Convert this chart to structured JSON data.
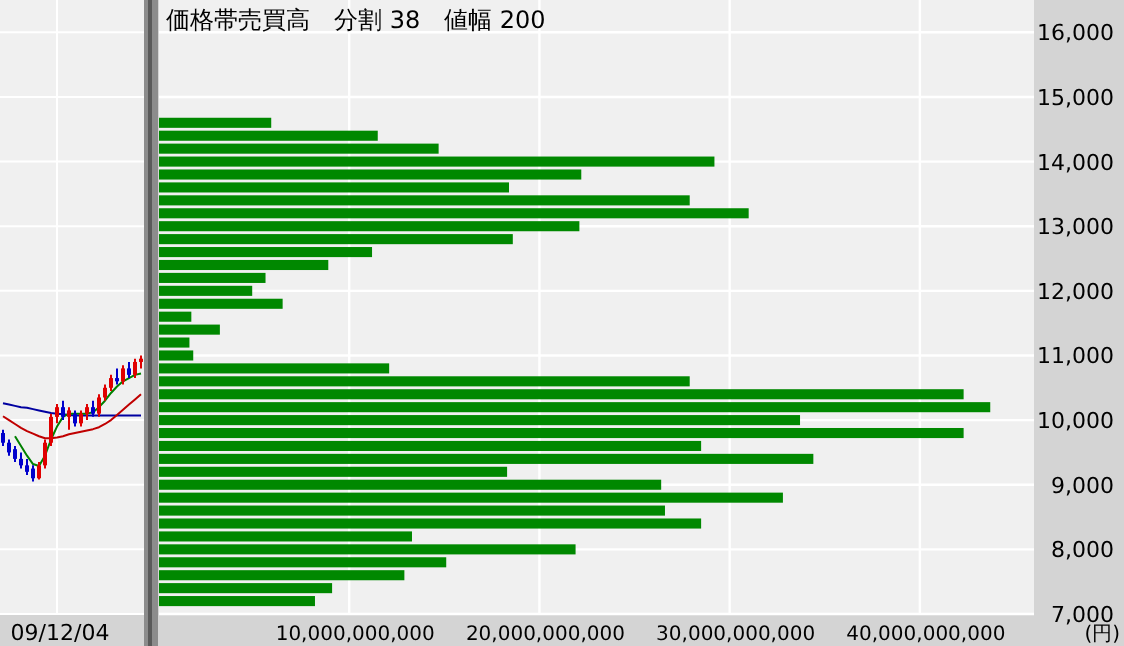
{
  "chart_data": [
    {
      "type": "candlestick",
      "categories": [
        null,
        null,
        null,
        null,
        null,
        null,
        null,
        null,
        null,
        "09/12/04",
        null,
        null,
        null,
        null,
        null,
        null,
        null,
        null,
        null,
        null,
        null,
        null,
        null,
        null
      ],
      "ohlc": [
        [
          9800,
          9850,
          9600,
          9650
        ],
        [
          9650,
          9700,
          9450,
          9500
        ],
        [
          9550,
          9600,
          9350,
          9400
        ],
        [
          9400,
          9500,
          9250,
          9300
        ],
        [
          9300,
          9400,
          9150,
          9200
        ],
        [
          9250,
          9300,
          9050,
          9100
        ],
        [
          9100,
          9350,
          9080,
          9300
        ],
        [
          9300,
          9700,
          9250,
          9650
        ],
        [
          9650,
          10100,
          9600,
          10050
        ],
        [
          10050,
          10250,
          9950,
          10200
        ],
        [
          10200,
          10300,
          10000,
          10050
        ],
        [
          10050,
          10200,
          9850,
          10150
        ],
        [
          10100,
          10150,
          9900,
          9950
        ],
        [
          9950,
          10150,
          9900,
          10100
        ],
        [
          10100,
          10250,
          10000,
          10200
        ],
        [
          10200,
          10300,
          10050,
          10100
        ],
        [
          10100,
          10400,
          10050,
          10350
        ],
        [
          10350,
          10550,
          10300,
          10500
        ],
        [
          10500,
          10700,
          10450,
          10650
        ],
        [
          10650,
          10800,
          10550,
          10600
        ],
        [
          10600,
          10850,
          10550,
          10800
        ],
        [
          10800,
          10900,
          10650,
          10700
        ],
        [
          10700,
          10950,
          10650,
          10900
        ],
        [
          10900,
          11000,
          10800,
          10950
        ]
      ],
      "colors": [
        "#0000cc",
        "#0000cc",
        "#0000cc",
        "#0000cc",
        "#0000cc",
        "#0000cc",
        "#e00000",
        "#e00000",
        "#e00000",
        "#e00000",
        "#0000cc",
        "#e00000",
        "#0000cc",
        "#e00000",
        "#e00000",
        "#0000cc",
        "#e00000",
        "#e00000",
        "#e00000",
        "#0000cc",
        "#e00000",
        "#0000cc",
        "#e00000",
        "#e00000"
      ],
      "series": [
        {
          "type": "line",
          "color": "#0000a0",
          "values": [
            10260,
            10240,
            10220,
            10200,
            10190,
            10170,
            10150,
            10130,
            10110,
            10100,
            10090,
            10080,
            10070,
            10070,
            10070,
            10070,
            10070,
            10070,
            10070,
            10070,
            10070,
            10070,
            10070,
            10070
          ]
        },
        {
          "type": "line",
          "color": "#c00000",
          "values": [
            10060,
            10000,
            9940,
            9880,
            9830,
            9790,
            9750,
            9720,
            9720,
            9730,
            9750,
            9780,
            9800,
            9820,
            9840,
            9860,
            9890,
            9940,
            10000,
            10080,
            10160,
            10240,
            10320,
            10400
          ]
        },
        {
          "type": "line",
          "color": "#008000",
          "values": [
            null,
            null,
            9750,
            9600,
            9450,
            9320,
            9290,
            9450,
            9700,
            9900,
            10050,
            10100,
            10100,
            10100,
            10100,
            10120,
            10200,
            10300,
            10420,
            10520,
            10600,
            10650,
            10700,
            10720
          ]
        }
      ],
      "ylim": [
        7000,
        16500
      ],
      "yticks": [
        {
          "value": 7000,
          "label": null
        },
        {
          "value": 8000,
          "label": null
        },
        {
          "value": 9000,
          "label": null
        },
        {
          "value": 10000,
          "label": null
        },
        {
          "value": 11000,
          "label": null
        },
        {
          "value": 12000,
          "label": null
        },
        {
          "value": 13000,
          "label": null
        },
        {
          "value": 14000,
          "label": null
        },
        {
          "value": 15000,
          "label": null
        },
        {
          "value": 16000,
          "label": null
        }
      ],
      "tick_labels": "x",
      "grid": true
    },
    {
      "type": "bar",
      "orientation": "horizontal",
      "title": "価格帯売買高　分割 38　値幅 200",
      "xlabel": "(円)",
      "x": [
        7200,
        7400,
        7600,
        7800,
        8000,
        8200,
        8400,
        8600,
        8800,
        9000,
        9200,
        9400,
        9600,
        9800,
        10000,
        10200,
        10400,
        10600,
        10800,
        11000,
        11200,
        11400,
        11600,
        11800,
        12000,
        12200,
        12400,
        12600,
        12800,
        13000,
        13200,
        13400,
        13600,
        13800,
        14000,
        14200,
        14400,
        14600
      ],
      "values": [
        8200000000,
        9100000000,
        12900000000,
        15100000000,
        21900000000,
        13300000000,
        28500000000,
        26600000000,
        32800000000,
        26400000000,
        18300000000,
        34400000000,
        28500000000,
        42300000000,
        33700000000,
        43700000000,
        42300000000,
        27900000000,
        12100000000,
        1800000000,
        1600000000,
        3200000000,
        1700000000,
        6500000000,
        4900000000,
        5600000000,
        8900000000,
        11200000000,
        18600000000,
        22100000000,
        31000000000,
        27900000000,
        18400000000,
        22200000000,
        29200000000,
        14700000000,
        11500000000,
        5900000000
      ],
      "color": "#008800",
      "xlim": [
        0,
        46000000000
      ],
      "xticks": [
        {
          "value": 10000000000,
          "label": "10,000,000,000"
        },
        {
          "value": 20000000000,
          "label": "20,000,000,000"
        },
        {
          "value": 30000000000,
          "label": "30,000,000,000"
        },
        {
          "value": 40000000000,
          "label": "40,000,000,000"
        }
      ],
      "ylim": [
        7000,
        16500
      ],
      "yticks": [
        {
          "value": 7000,
          "label": "7,000"
        },
        {
          "value": 8000,
          "label": "8,000"
        },
        {
          "value": 9000,
          "label": "9,000"
        },
        {
          "value": 10000,
          "label": "10,000"
        },
        {
          "value": 11000,
          "label": "11,000"
        },
        {
          "value": 12000,
          "label": "12,000"
        },
        {
          "value": 13000,
          "label": "13,000"
        },
        {
          "value": 14000,
          "label": "14,000"
        },
        {
          "value": 15000,
          "label": "15,000"
        },
        {
          "value": 16000,
          "label": "16,000"
        }
      ],
      "grid": true
    }
  ]
}
